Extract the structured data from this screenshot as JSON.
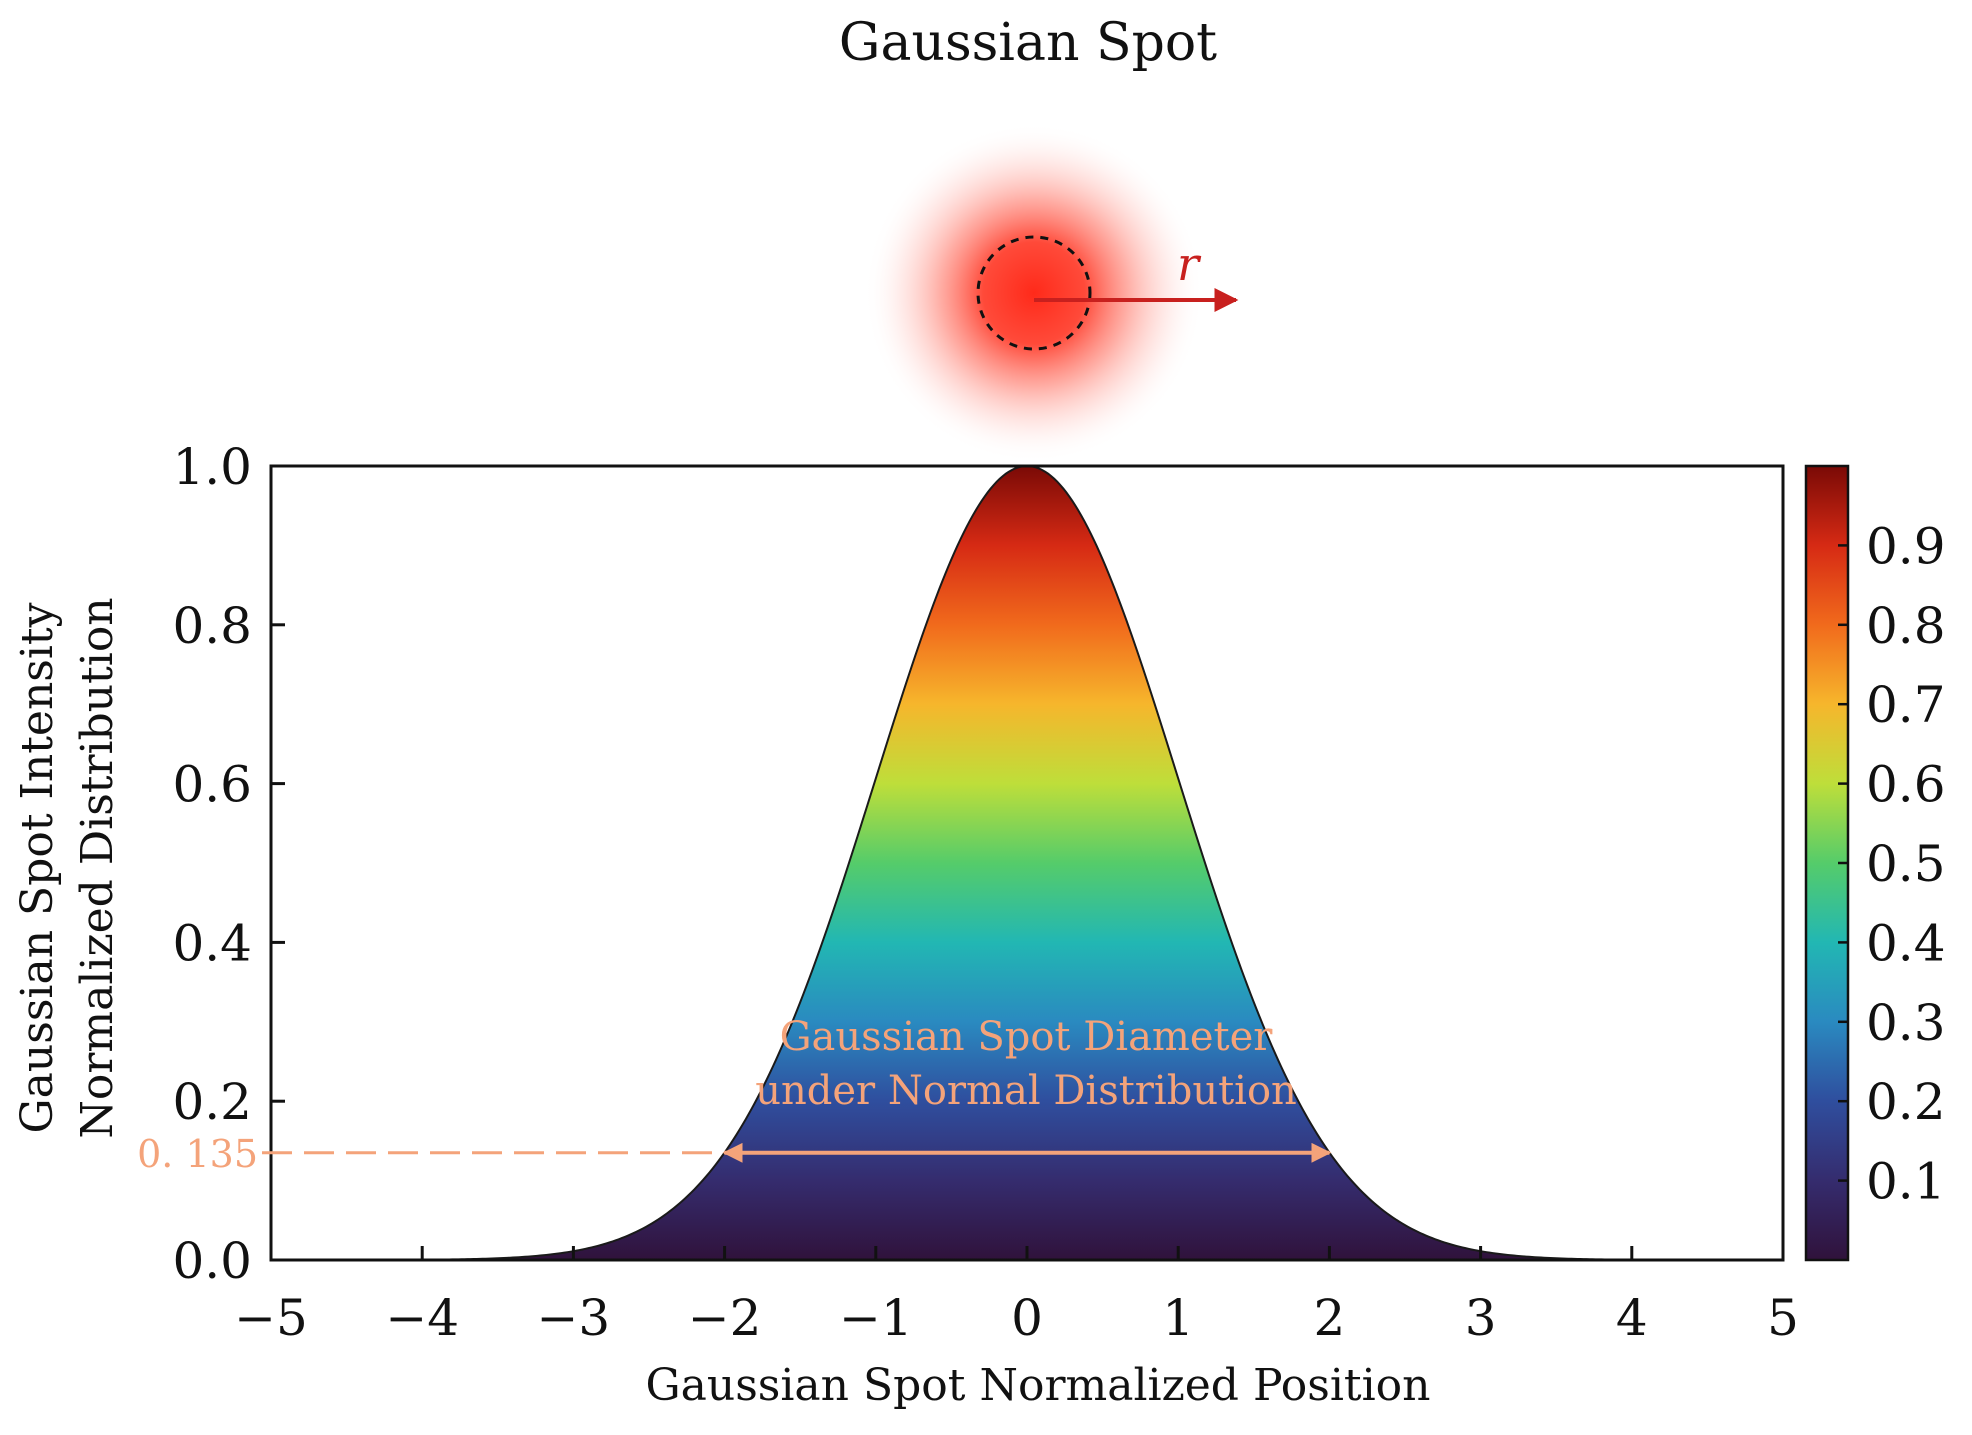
{
  "header": {
    "title": "Gaussian Spot",
    "radius_symbol": "r"
  },
  "colors": {
    "spot": "#ff2a1a",
    "arrow": "#c8201e",
    "annotation": "#f4a37a",
    "curve_outline": "#1a1a1a",
    "axis": "#111111"
  },
  "chart_data": {
    "type": "area",
    "title": "Gaussian Spot",
    "xlabel": "Gaussian Spot Normalized Position",
    "ylabel_line1": "Gaussian Spot Intensity",
    "ylabel_line2": "Normalized Distribution",
    "xlim": [
      -5,
      5
    ],
    "ylim": [
      0,
      1.0
    ],
    "function": "y = exp(-x^2 / 2)",
    "sigma": 1,
    "peak": 1.0,
    "x_ticks": [
      -5,
      -4,
      -3,
      -2,
      -1,
      0,
      1,
      2,
      3,
      4,
      5
    ],
    "x_tick_labels": [
      "−5",
      "−4",
      "−3",
      "−2",
      "−1",
      "0",
      "1",
      "2",
      "3",
      "4",
      "5"
    ],
    "y_ticks": [
      0.0,
      0.2,
      0.4,
      0.6,
      0.8,
      1.0
    ],
    "y_tick_labels": [
      "0.0",
      "0.2",
      "0.4",
      "0.6",
      "0.8",
      "1.0"
    ],
    "colorbar": {
      "colormap": "turbo",
      "range": [
        0,
        1
      ],
      "ticks": [
        0.1,
        0.2,
        0.3,
        0.4,
        0.5,
        0.6,
        0.7,
        0.8,
        0.9
      ],
      "tick_labels": [
        "0.1",
        "0.2",
        "0.3",
        "0.4",
        "0.5",
        "0.6",
        "0.7",
        "0.8",
        "0.9"
      ]
    },
    "threshold": {
      "value": 0.135,
      "label": "0. 135",
      "diameter_from": -2,
      "diameter_to": 2
    },
    "annotation_line1": "Gaussian Spot Diameter",
    "annotation_line2": "under Normal Distribution",
    "grid": false,
    "legend": "none"
  }
}
